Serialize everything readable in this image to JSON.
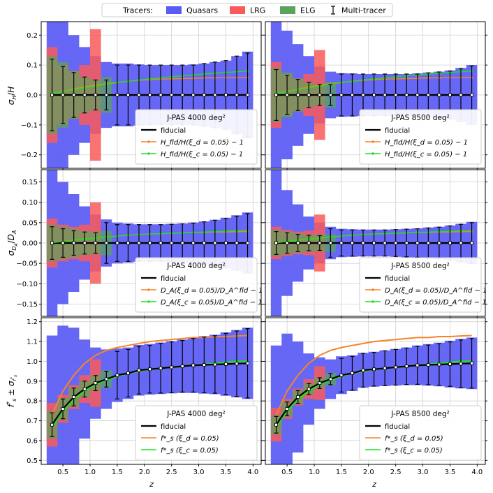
{
  "chart_data": {
    "type": "multi-panel",
    "xlabel": "z",
    "legend": {
      "title": "Tracers:",
      "entries": [
        {
          "label": "Quasars",
          "color": "#5a5af5"
        },
        {
          "label": "LRG",
          "color": "#f95a5a"
        },
        {
          "label": "ELG",
          "color": "#5aa55a"
        },
        {
          "label": "Multi-tracer",
          "color": "#000000"
        }
      ]
    },
    "x_ticks": [
      "0.5",
      "1.0",
      "1.5",
      "2.0",
      "2.5",
      "3.0",
      "3.5",
      "4.0"
    ],
    "x_tick_values": [
      0.5,
      1.0,
      1.5,
      2.0,
      2.5,
      3.0,
      3.5,
      4.0
    ],
    "xlim": [
      0.1,
      4.15
    ],
    "survey_labels": [
      "J-PAS 4000 deg²",
      "J-PAS 8500 deg²"
    ],
    "rows": [
      {
        "name": "hubble",
        "ylabel": "σ_H/H",
        "ylim": [
          -0.245,
          0.245
        ],
        "y_ticks": [
          -0.2,
          -0.1,
          0.0,
          0.1,
          0.2
        ],
        "y_tick_labels": [
          "−0.2",
          "−0.1",
          "0.0",
          "0.1",
          "0.2"
        ],
        "legend_labels": [
          "fiducial",
          "H_fid/H(ξ_d = 0.05) − 1",
          "H_fid/H(ξ_c = 0.05) − 1"
        ]
      },
      {
        "name": "angular",
        "ylabel": "σ_DA/D_A",
        "ylim": [
          -0.18,
          0.18
        ],
        "y_ticks": [
          -0.15,
          -0.1,
          -0.05,
          0.0,
          0.05,
          0.1,
          0.15
        ],
        "y_tick_labels": [
          "−0.15",
          "−0.10",
          "−0.05",
          "0.00",
          "0.05",
          "0.10",
          "0.15"
        ],
        "legend_labels": [
          "fiducial",
          "D_A(ξ_d = 0.05)/D_A^fid − 1",
          "D_A(ξ_c = 0.05)/D_A^fid − 1"
        ]
      },
      {
        "name": "growth",
        "ylabel": "f*_s ± σ_f*s",
        "ylim": [
          0.48,
          1.22
        ],
        "y_ticks": [
          0.5,
          0.6,
          0.7,
          0.8,
          0.9,
          1.0,
          1.1,
          1.2
        ],
        "y_tick_labels": [
          "0.5",
          "0.6",
          "0.7",
          "0.8",
          "0.9",
          "1.0",
          "1.1",
          "1.2"
        ],
        "legend_labels": [
          "fiducial",
          "f*_s (ξ_d = 0.05)",
          "f*_s (ξ_c = 0.05)"
        ]
      }
    ],
    "z_bins": [
      0.3,
      0.5,
      0.7,
      0.9,
      1.1,
      1.3,
      1.5,
      1.7,
      1.9,
      2.1,
      2.3,
      2.5,
      2.7,
      2.9,
      3.1,
      3.3,
      3.5,
      3.7,
      3.9
    ],
    "bin_width": 0.2,
    "fiducial_growth": [
      0.68,
      0.76,
      0.82,
      0.86,
      0.89,
      0.91,
      0.93,
      0.94,
      0.955,
      0.96,
      0.965,
      0.97,
      0.975,
      0.98,
      0.982,
      0.984,
      0.986,
      0.988,
      0.99
    ],
    "xi_d_growth": [
      0.73,
      0.85,
      0.93,
      0.99,
      1.03,
      1.055,
      1.07,
      1.08,
      1.09,
      1.1,
      1.105,
      1.11,
      1.115,
      1.12,
      1.12,
      1.125,
      1.125,
      1.128,
      1.13
    ],
    "xi_c_growth": [
      0.67,
      0.75,
      0.81,
      0.85,
      0.885,
      0.905,
      0.925,
      0.94,
      0.95,
      0.96,
      0.965,
      0.97,
      0.975,
      0.98,
      0.985,
      0.99,
      0.995,
      1.0,
      1.0
    ],
    "hubble_xi_d": [
      0.005,
      0.012,
      0.02,
      0.027,
      0.033,
      0.038,
      0.042,
      0.046,
      0.049,
      0.051,
      0.053,
      0.054,
      0.055,
      0.056,
      0.057,
      0.057,
      0.058,
      0.058,
      0.058
    ],
    "hubble_xi_c": [
      0.005,
      0.011,
      0.018,
      0.024,
      0.03,
      0.036,
      0.041,
      0.046,
      0.05,
      0.054,
      0.057,
      0.061,
      0.064,
      0.067,
      0.07,
      0.073,
      0.075,
      0.078,
      0.08
    ],
    "angular_xi_d": [
      0.001,
      0.004,
      0.007,
      0.01,
      0.012,
      0.015,
      0.017,
      0.019,
      0.021,
      0.022,
      0.023,
      0.024,
      0.025,
      0.026,
      0.026,
      0.027,
      0.027,
      0.028,
      0.028
    ],
    "angular_xi_c": [
      0.001,
      0.004,
      0.007,
      0.01,
      0.012,
      0.015,
      0.017,
      0.019,
      0.021,
      0.022,
      0.023,
      0.024,
      0.025,
      0.026,
      0.027,
      0.028,
      0.029,
      0.03,
      0.03
    ],
    "quasar_err_4000": {
      "hubble": [
        0.245,
        0.245,
        0.2,
        0.16,
        0.13,
        0.11,
        0.105,
        0.105,
        0.102,
        0.1,
        0.1,
        0.1,
        0.1,
        0.102,
        0.105,
        0.11,
        0.115,
        0.13,
        0.145
      ],
      "angular": [
        0.18,
        0.15,
        0.12,
        0.09,
        0.07,
        0.058,
        0.05,
        0.048,
        0.046,
        0.046,
        0.046,
        0.047,
        0.048,
        0.05,
        0.053,
        0.057,
        0.062,
        0.068,
        0.075
      ],
      "growth": [
        0.45,
        0.42,
        0.35,
        0.25,
        0.18,
        0.15,
        0.135,
        0.13,
        0.128,
        0.128,
        0.13,
        0.132,
        0.135,
        0.14,
        0.145,
        0.15,
        0.16,
        0.17,
        0.18
      ]
    },
    "quasar_err_8500": {
      "hubble": [
        0.245,
        0.215,
        0.17,
        0.13,
        0.095,
        0.078,
        0.073,
        0.072,
        0.07,
        0.07,
        0.07,
        0.07,
        0.07,
        0.072,
        0.075,
        0.078,
        0.082,
        0.09,
        0.1
      ],
      "angular": [
        0.18,
        0.13,
        0.095,
        0.065,
        0.05,
        0.04,
        0.035,
        0.034,
        0.033,
        0.033,
        0.033,
        0.034,
        0.035,
        0.036,
        0.038,
        0.04,
        0.043,
        0.047,
        0.052
      ],
      "growth": [
        0.4,
        0.38,
        0.28,
        0.18,
        0.13,
        0.1,
        0.095,
        0.09,
        0.088,
        0.088,
        0.09,
        0.092,
        0.095,
        0.1,
        0.105,
        0.11,
        0.118,
        0.125,
        0.13
      ]
    },
    "lrg_err_4000": {
      "hubble": [
        0.16,
        0.1,
        0.08,
        0.1,
        0.22
      ],
      "angular": [
        0.06,
        0.045,
        0.04,
        0.045,
        0.1
      ],
      "growth": [
        0.11,
        0.07,
        0.06,
        0.07,
        0.12
      ]
    },
    "lrg_err_8500": {
      "hubble": [
        0.11,
        0.07,
        0.055,
        0.07,
        0.15
      ],
      "angular": [
        0.04,
        0.032,
        0.028,
        0.03,
        0.07
      ],
      "growth": [
        0.085,
        0.05,
        0.042,
        0.05,
        0.085
      ]
    },
    "elg_err_4000": {
      "hubble": [
        0.13,
        0.11,
        0.08,
        0.06,
        0.05,
        0.06
      ],
      "angular": [
        0.045,
        0.04,
        0.035,
        0.03,
        0.028,
        0.03
      ],
      "growth": [
        0.07,
        0.055,
        0.05,
        0.042,
        0.04,
        0.045
      ]
    },
    "elg_err_8500": {
      "hubble": [
        0.09,
        0.075,
        0.055,
        0.042,
        0.035,
        0.042
      ],
      "angular": [
        0.032,
        0.028,
        0.024,
        0.021,
        0.02,
        0.022
      ],
      "growth": [
        0.05,
        0.04,
        0.035,
        0.03,
        0.028,
        0.032
      ]
    },
    "multi_err_4000": {
      "hubble": [
        0.12,
        0.095,
        0.075,
        0.06,
        0.05,
        0.05,
        0.1,
        0.1,
        0.1,
        0.1,
        0.1,
        0.1,
        0.1,
        0.1,
        0.105,
        0.11,
        0.115,
        0.13,
        0.14
      ],
      "angular": [
        0.04,
        0.035,
        0.03,
        0.027,
        0.025,
        0.05,
        0.045,
        0.045,
        0.045,
        0.045,
        0.045,
        0.046,
        0.047,
        0.049,
        0.052,
        0.056,
        0.06,
        0.066,
        0.072
      ],
      "growth": [
        0.06,
        0.05,
        0.045,
        0.04,
        0.038,
        0.04,
        0.12,
        0.12,
        0.12,
        0.12,
        0.125,
        0.128,
        0.13,
        0.135,
        0.14,
        0.145,
        0.155,
        0.165,
        0.175
      ]
    },
    "multi_err_8500": {
      "hubble": [
        0.085,
        0.065,
        0.052,
        0.042,
        0.035,
        0.035,
        0.07,
        0.07,
        0.07,
        0.07,
        0.07,
        0.07,
        0.07,
        0.07,
        0.074,
        0.077,
        0.08,
        0.088,
        0.097
      ],
      "angular": [
        0.028,
        0.025,
        0.021,
        0.019,
        0.018,
        0.035,
        0.032,
        0.032,
        0.032,
        0.032,
        0.032,
        0.033,
        0.034,
        0.035,
        0.037,
        0.039,
        0.042,
        0.046,
        0.05
      ],
      "growth": [
        0.042,
        0.035,
        0.032,
        0.028,
        0.027,
        0.028,
        0.085,
        0.085,
        0.085,
        0.085,
        0.088,
        0.09,
        0.092,
        0.096,
        0.1,
        0.105,
        0.112,
        0.12,
        0.125
      ]
    },
    "colors": {
      "quasar_fill": "#5a5af5",
      "lrg_fill": "#f95a5a",
      "elg_fill": "#5aa55a",
      "xi_d_line": "#f5842a",
      "xi_c_line": "#22e022",
      "fiducial_line": "#000000"
    }
  }
}
